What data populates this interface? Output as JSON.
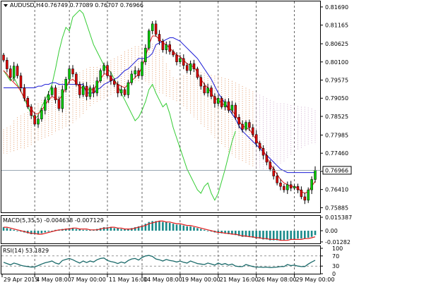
{
  "header": {
    "symbol": "AUDUSD,H4",
    "ohlc": "0.76749 0.77089 0.76707 0.76966"
  },
  "chart_data": [
    {
      "type": "candlestick",
      "name": "AUDUSD,H4",
      "price_ticks": [
        "0.81690",
        "0.81165",
        "0.80625",
        "0.80100",
        "0.79575",
        "0.79050",
        "0.78525",
        "0.77985",
        "0.77460",
        "0.76935",
        "0.76410",
        "0.75885"
      ],
      "price_values": [
        0.8169,
        0.81165,
        0.80625,
        0.801,
        0.79575,
        0.7905,
        0.78525,
        0.77985,
        0.7746,
        0.76935,
        0.7641,
        0.75885
      ],
      "current_price": "0.76966",
      "current_value": 0.76966,
      "ylim": [
        0.7575,
        0.8185
      ],
      "closes": [
        0.8015,
        0.799,
        0.7965,
        0.7998,
        0.797,
        0.7935,
        0.7905,
        0.788,
        0.7855,
        0.783,
        0.7845,
        0.787,
        0.79,
        0.7915,
        0.7935,
        0.79,
        0.7875,
        0.793,
        0.796,
        0.799,
        0.7975,
        0.7945,
        0.7915,
        0.794,
        0.791,
        0.7935,
        0.792,
        0.7955,
        0.7985,
        0.8,
        0.797,
        0.7955,
        0.7945,
        0.792,
        0.793,
        0.7915,
        0.795,
        0.7975,
        0.7985,
        0.797,
        0.801,
        0.805,
        0.81,
        0.812,
        0.809,
        0.807,
        0.8045,
        0.806,
        0.804,
        0.803,
        0.801,
        0.802,
        0.8,
        0.7985,
        0.8005,
        0.799,
        0.7965,
        0.794,
        0.792,
        0.7935,
        0.791,
        0.789,
        0.7905,
        0.788,
        0.7895,
        0.787,
        0.7885,
        0.785,
        0.783,
        0.7815,
        0.7835,
        0.782,
        0.78,
        0.7775,
        0.776,
        0.774,
        0.772,
        0.77,
        0.768,
        0.766,
        0.765,
        0.764,
        0.7655,
        0.7645,
        0.765,
        0.764,
        0.762,
        0.761,
        0.764,
        0.767,
        0.7697
      ],
      "conversion_line": [
        0.7985,
        0.7975,
        0.796,
        0.795,
        0.794,
        0.7925,
        0.7905,
        0.789,
        0.7875,
        0.786,
        0.786,
        0.787,
        0.7885,
        0.79,
        0.791,
        0.7905,
        0.79,
        0.7915,
        0.7935,
        0.7955,
        0.796,
        0.795,
        0.7935,
        0.7935,
        0.793,
        0.793,
        0.793,
        0.7945,
        0.796,
        0.7975,
        0.7975,
        0.7965,
        0.7955,
        0.7945,
        0.794,
        0.7935,
        0.7945,
        0.7955,
        0.7965,
        0.7975,
        0.7995,
        0.8025,
        0.806,
        0.8085,
        0.8085,
        0.8075,
        0.8065,
        0.806,
        0.805,
        0.804,
        0.803,
        0.8025,
        0.8015,
        0.8005,
        0.8,
        0.7995,
        0.798,
        0.796,
        0.7945,
        0.7935,
        0.792,
        0.7905,
        0.79,
        0.789,
        0.7885,
        0.7875,
        0.787,
        0.7855,
        0.784,
        0.7825,
        0.782,
        0.7815,
        0.78,
        0.7785,
        0.777,
        0.7755,
        0.7735,
        0.7715,
        0.77,
        0.7685,
        0.767,
        0.766,
        0.7655,
        0.765,
        0.765,
        0.7645,
        0.7635,
        0.763,
        0.7635,
        0.765,
        0.7665
      ],
      "base_line": [
        0.7935,
        0.7935,
        0.7935,
        0.7935,
        0.7935,
        0.7935,
        0.7935,
        0.7935,
        0.7935,
        0.7935,
        0.794,
        0.794,
        0.7945,
        0.7945,
        0.795,
        0.795,
        0.7945,
        0.7945,
        0.7945,
        0.7945,
        0.7945,
        0.7945,
        0.7945,
        0.7945,
        0.792,
        0.792,
        0.792,
        0.793,
        0.7935,
        0.7945,
        0.795,
        0.7955,
        0.796,
        0.7965,
        0.7975,
        0.7985,
        0.799,
        0.8,
        0.801,
        0.802,
        0.802,
        0.802,
        0.8025,
        0.8035,
        0.806,
        0.8065,
        0.807,
        0.8075,
        0.808,
        0.808,
        0.8075,
        0.807,
        0.806,
        0.805,
        0.804,
        0.803,
        0.802,
        0.8005,
        0.799,
        0.7975,
        0.796,
        0.794,
        0.792,
        0.7905,
        0.789,
        0.7875,
        0.786,
        0.7845,
        0.7825,
        0.781,
        0.78,
        0.779,
        0.778,
        0.777,
        0.776,
        0.775,
        0.774,
        0.773,
        0.772,
        0.771,
        0.77,
        0.7695,
        0.769,
        0.769,
        0.769,
        0.769,
        0.769,
        0.769,
        0.769,
        0.769,
        0.769
      ],
      "lagging_span": [
        0.7985,
        0.797,
        0.7955,
        0.7965,
        0.7945,
        0.7925,
        0.7905,
        0.788,
        0.786,
        0.7845,
        0.7855,
        0.788,
        0.79,
        0.792,
        0.7945,
        0.799,
        0.804,
        0.808,
        0.811,
        0.81,
        0.814,
        0.815,
        0.816,
        0.815,
        0.812,
        0.809,
        0.806,
        0.804,
        0.802,
        0.8,
        0.799,
        0.798,
        0.796,
        0.794,
        0.792,
        0.79,
        0.788,
        0.786,
        0.784,
        0.785,
        0.787,
        0.7895,
        0.793,
        0.7945,
        0.792,
        0.79,
        0.788,
        0.789,
        0.786,
        0.782,
        0.779,
        0.776,
        0.773,
        0.77,
        0.768,
        0.766,
        0.764,
        0.763,
        0.765,
        0.766,
        0.763,
        0.761,
        0.763,
        0.7665,
        0.77,
        0.774,
        0.778,
        0.781
      ],
      "cloud_upper": [
        0.7815,
        0.782,
        0.7825,
        0.784,
        0.785,
        0.7855,
        0.786,
        0.7865,
        0.787,
        0.788,
        0.789,
        0.79,
        0.791,
        0.792,
        0.793,
        0.794,
        0.795,
        0.7955,
        0.796,
        0.7965,
        0.797,
        0.7975,
        0.798,
        0.7985,
        0.799,
        0.7995,
        0.7995,
        0.7995,
        0.8,
        0.8005,
        0.801,
        0.8015,
        0.802,
        0.8025,
        0.803,
        0.804,
        0.8045,
        0.805,
        0.8055,
        0.8055,
        0.8058,
        0.806,
        0.8062,
        0.8062,
        0.806,
        0.8045,
        0.8025,
        0.8005,
        0.7985,
        0.7965,
        0.796,
        0.7965,
        0.797,
        0.7975,
        0.798,
        0.798,
        0.798,
        0.798,
        0.7978,
        0.7975,
        0.7972,
        0.797,
        0.7968,
        0.7965,
        0.7962,
        0.796,
        0.7955,
        0.795,
        0.7945,
        0.794,
        0.7935,
        0.793,
        0.7925,
        0.792,
        0.7915,
        0.791,
        0.7905,
        0.79,
        0.7895,
        0.789,
        0.789,
        0.789,
        0.7888,
        0.7885,
        0.7885,
        0.7882,
        0.788,
        0.788,
        0.7878,
        0.7875,
        0.787,
        0.787,
        0.7865,
        0.7865,
        0.786,
        0.786,
        0.786,
        0.7858,
        0.7855,
        0.7855,
        0.7852,
        0.785,
        0.785,
        0.7848,
        0.7845,
        0.7845,
        0.7845,
        0.784,
        0.784,
        0.7835,
        0.7835,
        0.783,
        0.783,
        0.783,
        0.7828,
        0.7826
      ],
      "cloud_lower": [
        0.7745,
        0.7745,
        0.775,
        0.775,
        0.7755,
        0.776,
        0.776,
        0.7765,
        0.777,
        0.7775,
        0.778,
        0.7785,
        0.779,
        0.7795,
        0.78,
        0.7805,
        0.781,
        0.7815,
        0.782,
        0.7825,
        0.783,
        0.784,
        0.785,
        0.786,
        0.787,
        0.788,
        0.789,
        0.7895,
        0.79,
        0.7905,
        0.791,
        0.7915,
        0.792,
        0.7925,
        0.793,
        0.7935,
        0.794,
        0.7945,
        0.795,
        0.7955,
        0.7955,
        0.795,
        0.7945,
        0.7935,
        0.7925,
        0.792,
        0.7915,
        0.791,
        0.7905,
        0.79,
        0.7895,
        0.789,
        0.788,
        0.787,
        0.786,
        0.785,
        0.784,
        0.783,
        0.782,
        0.781,
        0.78,
        0.779,
        0.778,
        0.777,
        0.776,
        0.775,
        0.774,
        0.773,
        0.7725,
        0.772,
        0.7715,
        0.771,
        0.7705,
        0.77,
        0.77,
        0.77,
        0.77,
        0.7702,
        0.7705,
        0.771,
        0.7715,
        0.772,
        0.773,
        0.774,
        0.775,
        0.7755,
        0.776,
        0.7765,
        0.777,
        0.7772,
        0.7772,
        0.777,
        0.7768,
        0.7765,
        0.776,
        0.7755,
        0.775,
        0.774,
        0.773,
        0.772,
        0.771,
        0.77,
        0.7695,
        0.769,
        0.7685,
        0.768,
        0.768,
        0.7682,
        0.7685,
        0.769,
        0.77,
        0.7705,
        0.771,
        0.7712,
        0.7712
      ]
    },
    {
      "type": "histogram",
      "name": "MACD",
      "label": "MACD(5,35,5) -0.004638 -0.007129",
      "ticks": [
        "0.015387",
        "0.00",
        "-0.01282"
      ],
      "tick_values": [
        0.015387,
        0.0,
        -0.01282
      ],
      "ylim": [
        -0.0145,
        0.017
      ],
      "histogram": [
        0.004,
        0.003,
        0.002,
        0.001,
        0.0,
        -0.001,
        -0.002,
        -0.003,
        -0.004,
        -0.004,
        -0.004,
        -0.003,
        -0.002,
        -0.001,
        0.0,
        0.001,
        0.001,
        0.002,
        0.002,
        0.003,
        0.003,
        0.002,
        0.002,
        0.001,
        0.001,
        0.001,
        0.001,
        0.002,
        0.003,
        0.004,
        0.004,
        0.004,
        0.003,
        0.003,
        0.002,
        0.002,
        0.002,
        0.003,
        0.004,
        0.005,
        0.006,
        0.008,
        0.01,
        0.011,
        0.011,
        0.011,
        0.01,
        0.01,
        0.009,
        0.008,
        0.007,
        0.007,
        0.006,
        0.005,
        0.005,
        0.004,
        0.003,
        0.002,
        0.001,
        0.0,
        -0.001,
        -0.002,
        -0.002,
        -0.003,
        -0.003,
        -0.004,
        -0.004,
        -0.005,
        -0.006,
        -0.007,
        -0.007,
        -0.007,
        -0.008,
        -0.009,
        -0.009,
        -0.01,
        -0.01,
        -0.011,
        -0.011,
        -0.011,
        -0.011,
        -0.011,
        -0.01,
        -0.01,
        -0.01,
        -0.009,
        -0.009,
        -0.009,
        -0.008,
        -0.007,
        -0.005
      ],
      "signal": [
        0.004,
        0.004,
        0.003,
        0.002,
        0.001,
        0.0,
        -0.001,
        -0.002,
        -0.003,
        -0.003,
        -0.004,
        -0.004,
        -0.003,
        -0.002,
        -0.001,
        0.0,
        0.001,
        0.001,
        0.002,
        0.002,
        0.003,
        0.003,
        0.002,
        0.002,
        0.002,
        0.001,
        0.001,
        0.001,
        0.002,
        0.003,
        0.003,
        0.004,
        0.004,
        0.003,
        0.003,
        0.002,
        0.002,
        0.002,
        0.003,
        0.004,
        0.005,
        0.006,
        0.008,
        0.009,
        0.01,
        0.011,
        0.011,
        0.01,
        0.01,
        0.009,
        0.008,
        0.008,
        0.007,
        0.006,
        0.006,
        0.005,
        0.004,
        0.003,
        0.002,
        0.001,
        0.0,
        -0.001,
        -0.002,
        -0.002,
        -0.003,
        -0.003,
        -0.004,
        -0.004,
        -0.005,
        -0.006,
        -0.006,
        -0.007,
        -0.007,
        -0.008,
        -0.008,
        -0.009,
        -0.009,
        -0.01,
        -0.01,
        -0.01,
        -0.011,
        -0.011,
        -0.011,
        -0.01,
        -0.01,
        -0.01,
        -0.01,
        -0.009,
        -0.009,
        -0.008,
        -0.007
      ]
    },
    {
      "type": "line",
      "name": "RSI",
      "label": "RSI(14) 53.1829",
      "ticks": [
        "100",
        "70",
        "30",
        "0"
      ],
      "tick_values": [
        100,
        70,
        30,
        0
      ],
      "levels": [
        70,
        30
      ],
      "ylim": [
        0,
        100
      ],
      "values": [
        45,
        40,
        35,
        42,
        38,
        33,
        30,
        28,
        26,
        27,
        32,
        38,
        43,
        46,
        50,
        42,
        38,
        52,
        56,
        60,
        55,
        48,
        42,
        50,
        44,
        50,
        46,
        55,
        60,
        62,
        52,
        48,
        45,
        40,
        46,
        42,
        52,
        58,
        60,
        54,
        64,
        70,
        72,
        68,
        58,
        55,
        50,
        56,
        52,
        50,
        46,
        50,
        45,
        42,
        50,
        45,
        40,
        38,
        36,
        42,
        38,
        34,
        42,
        36,
        40,
        34,
        38,
        30,
        28,
        28,
        36,
        32,
        28,
        26,
        26,
        25,
        26,
        24,
        25,
        26,
        28,
        28,
        36,
        32,
        34,
        30,
        28,
        28,
        38,
        46,
        53
      ]
    }
  ],
  "x_labels": [
    "29 Apr 2015",
    "4 May 08:00",
    "7 May 00:00",
    "11 May 16:00",
    "14 May 08:00",
    "19 May 00:00",
    "21 May 16:00",
    "26 May 08:00",
    "29 May 00:00"
  ]
}
